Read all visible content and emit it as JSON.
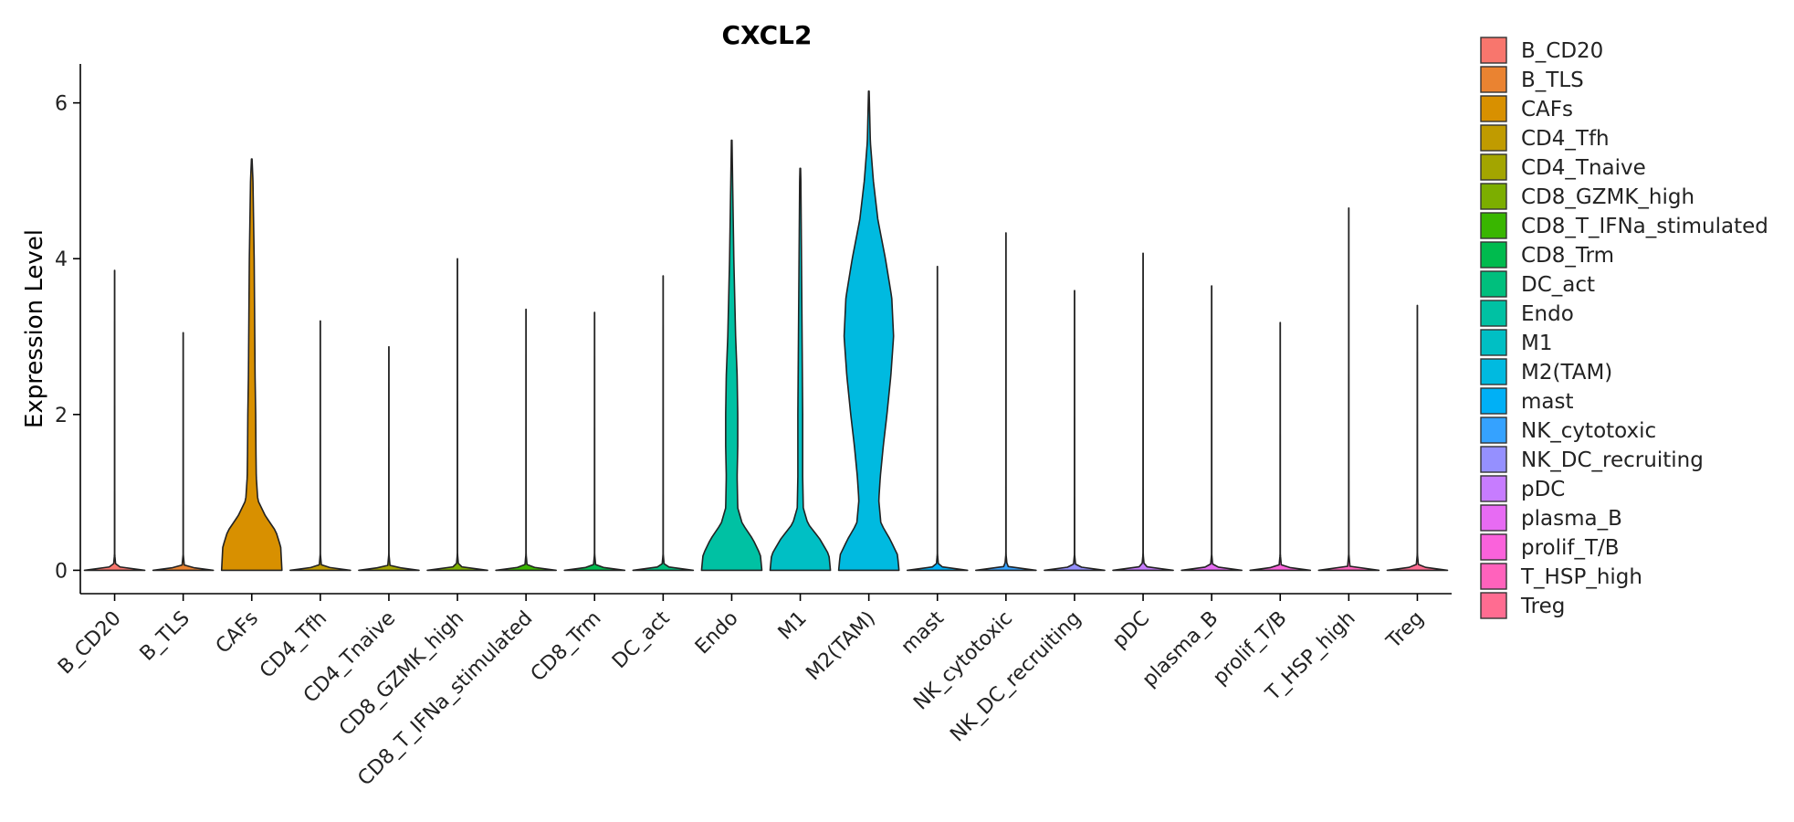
{
  "chart_data": {
    "type": "violin",
    "title": "CXCL2",
    "xlabel": "",
    "ylabel": "Expression Level",
    "ylim": [
      -0.3,
      6.5
    ],
    "yticks": [
      0,
      2,
      4,
      6
    ],
    "grid": false,
    "legend_position": "right",
    "categories": [
      "B_CD20",
      "B_TLS",
      "CAFs",
      "CD4_Tfh",
      "CD4_Tnaive",
      "CD8_GZMK_high",
      "CD8_T_IFNa_stimulated",
      "CD8_Trm",
      "DC_act",
      "Endo",
      "M1",
      "M2(TAM)",
      "mast",
      "NK_cytotoxic",
      "NK_DC_recruiting",
      "pDC",
      "plasma_B",
      "prolif_T/B",
      "T_HSP_high",
      "Treg"
    ],
    "colors": [
      "#F8766D",
      "#EA8331",
      "#D89000",
      "#C09B00",
      "#A3A500",
      "#7CAE00",
      "#39B600",
      "#00BB4E",
      "#00BF7D",
      "#00C1A3",
      "#00BFC4",
      "#00BAE0",
      "#00B0F6",
      "#35A2FF",
      "#9590FF",
      "#C77CFF",
      "#E76BF3",
      "#FA62DB",
      "#FF62BC",
      "#FF6C91"
    ],
    "series": [
      {
        "max": 3.85,
        "profile": [
          [
            0,
            1
          ],
          [
            0.05,
            0.04
          ],
          [
            0.2,
            0.004
          ],
          [
            3.85,
            0.003
          ]
        ]
      },
      {
        "max": 3.05,
        "profile": [
          [
            0,
            1
          ],
          [
            0.05,
            0.04
          ],
          [
            0.2,
            0.004
          ],
          [
            3.05,
            0.003
          ]
        ]
      },
      {
        "max": 5.28,
        "profile": [
          [
            0,
            1
          ],
          [
            0.3,
            0.96
          ],
          [
            0.5,
            0.8
          ],
          [
            0.7,
            0.45
          ],
          [
            0.9,
            0.2
          ],
          [
            1.2,
            0.15
          ],
          [
            1.5,
            0.14
          ],
          [
            2.0,
            0.13
          ],
          [
            2.5,
            0.11
          ],
          [
            3.0,
            0.1
          ],
          [
            3.5,
            0.09
          ],
          [
            4.0,
            0.08
          ],
          [
            4.5,
            0.06
          ],
          [
            5.0,
            0.04
          ],
          [
            5.28,
            0.01
          ]
        ]
      },
      {
        "max": 3.2,
        "profile": [
          [
            0,
            1
          ],
          [
            0.05,
            0.04
          ],
          [
            0.2,
            0.004
          ],
          [
            3.2,
            0.003
          ]
        ]
      },
      {
        "max": 2.87,
        "profile": [
          [
            0,
            1
          ],
          [
            0.05,
            0.04
          ],
          [
            0.2,
            0.004
          ],
          [
            2.87,
            0.003
          ]
        ]
      },
      {
        "max": 4.0,
        "profile": [
          [
            0,
            1
          ],
          [
            0.05,
            0.04
          ],
          [
            0.2,
            0.004
          ],
          [
            4.0,
            0.003
          ]
        ]
      },
      {
        "max": 3.35,
        "profile": [
          [
            0,
            1
          ],
          [
            0.05,
            0.04
          ],
          [
            0.2,
            0.004
          ],
          [
            3.35,
            0.003
          ]
        ]
      },
      {
        "max": 3.31,
        "profile": [
          [
            0,
            1
          ],
          [
            0.05,
            0.04
          ],
          [
            0.2,
            0.004
          ],
          [
            3.31,
            0.003
          ]
        ]
      },
      {
        "max": 3.78,
        "profile": [
          [
            0,
            1
          ],
          [
            0.05,
            0.04
          ],
          [
            0.2,
            0.004
          ],
          [
            3.78,
            0.003
          ]
        ]
      },
      {
        "max": 5.52,
        "profile": [
          [
            0,
            1
          ],
          [
            0.2,
            0.95
          ],
          [
            0.4,
            0.7
          ],
          [
            0.6,
            0.35
          ],
          [
            0.8,
            0.2
          ],
          [
            1.2,
            0.18
          ],
          [
            1.6,
            0.2
          ],
          [
            2.0,
            0.2
          ],
          [
            2.5,
            0.18
          ],
          [
            3.0,
            0.13
          ],
          [
            3.5,
            0.1
          ],
          [
            4.0,
            0.07
          ],
          [
            4.5,
            0.05
          ],
          [
            5.0,
            0.03
          ],
          [
            5.52,
            0.01
          ]
        ]
      },
      {
        "max": 5.16,
        "profile": [
          [
            0,
            1
          ],
          [
            0.2,
            0.95
          ],
          [
            0.4,
            0.65
          ],
          [
            0.6,
            0.25
          ],
          [
            0.8,
            0.1
          ],
          [
            1.2,
            0.08
          ],
          [
            2.0,
            0.08
          ],
          [
            2.5,
            0.07
          ],
          [
            3.0,
            0.06
          ],
          [
            3.5,
            0.05
          ],
          [
            4.0,
            0.04
          ],
          [
            4.5,
            0.03
          ],
          [
            5.0,
            0.02
          ],
          [
            5.16,
            0.01
          ]
        ]
      },
      {
        "max": 6.15,
        "profile": [
          [
            0,
            1
          ],
          [
            0.2,
            0.95
          ],
          [
            0.4,
            0.7
          ],
          [
            0.6,
            0.4
          ],
          [
            0.9,
            0.33
          ],
          [
            1.2,
            0.38
          ],
          [
            1.6,
            0.48
          ],
          [
            2.0,
            0.6
          ],
          [
            2.5,
            0.73
          ],
          [
            3.0,
            0.82
          ],
          [
            3.5,
            0.76
          ],
          [
            4.0,
            0.55
          ],
          [
            4.5,
            0.3
          ],
          [
            5.0,
            0.15
          ],
          [
            5.5,
            0.05
          ],
          [
            6.15,
            0.01
          ]
        ]
      },
      {
        "max": 3.9,
        "profile": [
          [
            0,
            1
          ],
          [
            0.05,
            0.04
          ],
          [
            0.2,
            0.004
          ],
          [
            3.9,
            0.003
          ]
        ]
      },
      {
        "max": 4.33,
        "profile": [
          [
            0,
            1
          ],
          [
            0.05,
            0.04
          ],
          [
            0.2,
            0.004
          ],
          [
            4.33,
            0.003
          ]
        ]
      },
      {
        "max": 3.59,
        "profile": [
          [
            0,
            1
          ],
          [
            0.05,
            0.04
          ],
          [
            0.2,
            0.004
          ],
          [
            3.59,
            0.003
          ]
        ]
      },
      {
        "max": 4.07,
        "profile": [
          [
            0,
            1
          ],
          [
            0.05,
            0.04
          ],
          [
            0.2,
            0.004
          ],
          [
            4.07,
            0.003
          ]
        ]
      },
      {
        "max": 3.65,
        "profile": [
          [
            0,
            1
          ],
          [
            0.05,
            0.04
          ],
          [
            0.2,
            0.004
          ],
          [
            3.65,
            0.003
          ]
        ]
      },
      {
        "max": 3.18,
        "profile": [
          [
            0,
            1
          ],
          [
            0.05,
            0.04
          ],
          [
            0.2,
            0.004
          ],
          [
            3.18,
            0.003
          ]
        ]
      },
      {
        "max": 4.65,
        "profile": [
          [
            0,
            1
          ],
          [
            0.05,
            0.04
          ],
          [
            0.2,
            0.004
          ],
          [
            4.65,
            0.003
          ]
        ]
      },
      {
        "max": 3.4,
        "profile": [
          [
            0,
            1
          ],
          [
            0.05,
            0.04
          ],
          [
            0.2,
            0.004
          ],
          [
            3.4,
            0.003
          ]
        ]
      }
    ]
  }
}
